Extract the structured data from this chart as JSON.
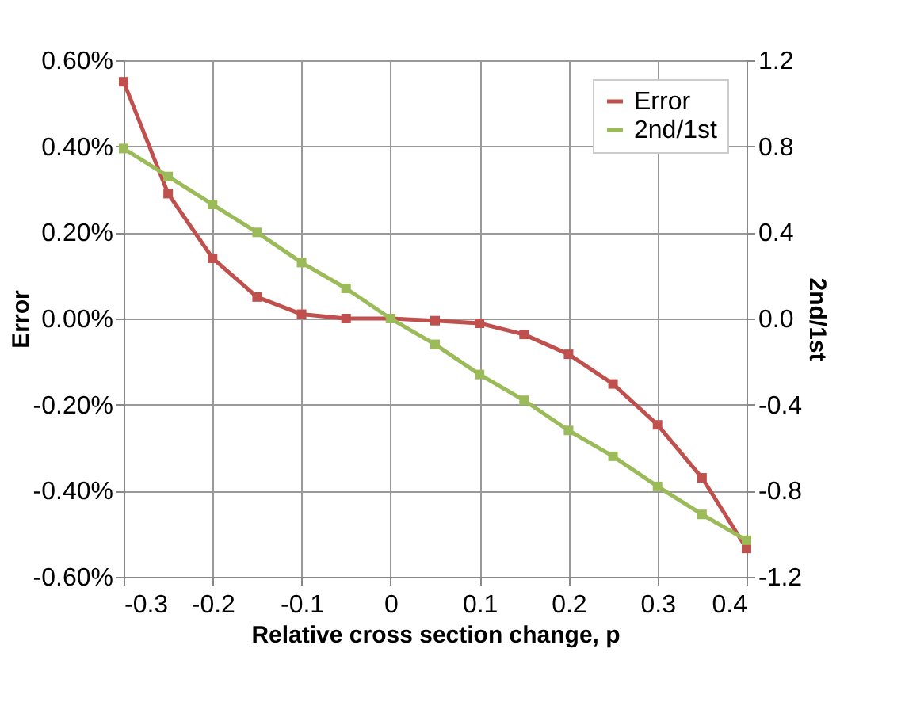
{
  "chart_data": {
    "type": "line",
    "xlabel": "Relative cross section change, p",
    "ylabel": "Error",
    "y2label": "2nd/1st",
    "x": [
      -0.3,
      -0.25,
      -0.2,
      -0.15,
      -0.1,
      -0.05,
      0,
      0.05,
      0.1,
      0.15,
      0.2,
      0.25,
      0.3,
      0.35,
      0.4
    ],
    "series": [
      {
        "name": "Error",
        "color": "#c0504d",
        "values": [
          0.55,
          0.29,
          0.14,
          0.05,
          0.01,
          0.0,
          0.0,
          -0.005,
          -0.011,
          -0.037,
          -0.083,
          -0.152,
          -0.247,
          -0.37,
          -0.534
        ]
      },
      {
        "name": "2nd/1st",
        "color": "#9bbb59",
        "axis": "y2",
        "values": [
          0.79,
          0.66,
          0.53,
          0.4,
          0.26,
          0.14,
          0.0,
          -0.12,
          -0.26,
          -0.38,
          -0.52,
          -0.64,
          -0.78,
          -0.91,
          -1.03
        ]
      }
    ],
    "xlim": [
      -0.3,
      0.4
    ],
    "xticks": [
      -0.3,
      -0.2,
      -0.1,
      0,
      0.1,
      0.2,
      0.3,
      0.4
    ],
    "ylim": [
      -0.6,
      0.6
    ],
    "yticks": [
      {
        "value": -0.6,
        "label": "-0.60%"
      },
      {
        "value": -0.4,
        "label": "-0.40%"
      },
      {
        "value": -0.2,
        "label": "-0.20%"
      },
      {
        "value": 0,
        "label": "0.00%"
      },
      {
        "value": 0.2,
        "label": "0.20%"
      },
      {
        "value": 0.4,
        "label": "0.40%"
      },
      {
        "value": 0.6,
        "label": "0.60%"
      }
    ],
    "y2lim": [
      -1.2,
      1.2
    ],
    "y2ticks": [
      -1.2,
      -0.8,
      -0.4,
      {
        "value": 0,
        "label": "0.0"
      },
      0.4,
      0.8,
      1.2
    ],
    "grid": true,
    "legend": "top right",
    "marker": "square",
    "line_style": "solid"
  }
}
